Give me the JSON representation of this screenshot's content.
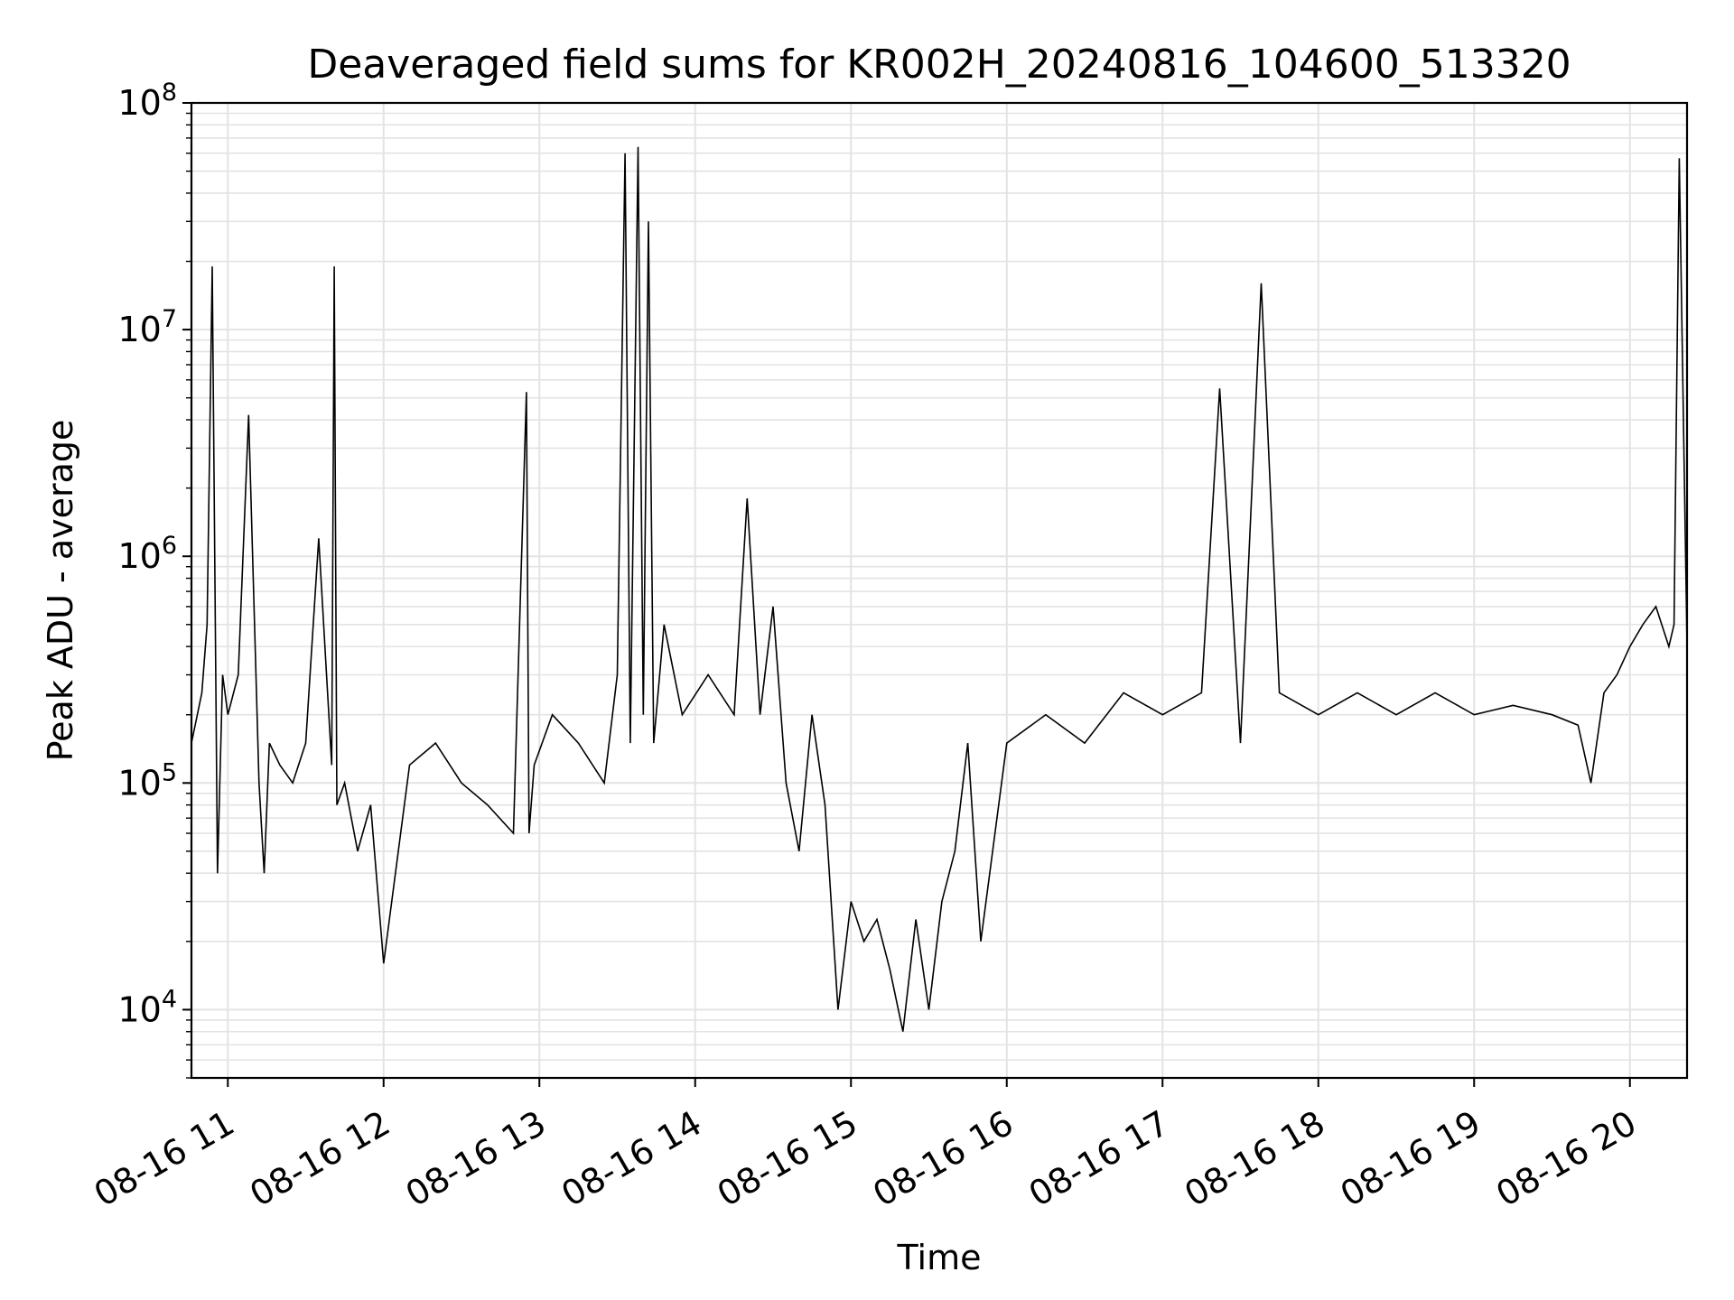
{
  "chart_data": {
    "type": "line",
    "title": "Deaveraged field sums for KR002H_20240816_104600_513320",
    "xlabel": "Time",
    "ylabel": "Peak ADU - average",
    "yscale": "log",
    "ylim": [
      5000,
      100000000
    ],
    "xlim": [
      "2024-08-16 10:46",
      "2024-08-16 20:22"
    ],
    "grid": true,
    "line_color": "#000000",
    "x_ticks": [
      {
        "value": "2024-08-16 11:00",
        "label": "08-16 11"
      },
      {
        "value": "2024-08-16 12:00",
        "label": "08-16 12"
      },
      {
        "value": "2024-08-16 13:00",
        "label": "08-16 13"
      },
      {
        "value": "2024-08-16 14:00",
        "label": "08-16 14"
      },
      {
        "value": "2024-08-16 15:00",
        "label": "08-16 15"
      },
      {
        "value": "2024-08-16 16:00",
        "label": "08-16 16"
      },
      {
        "value": "2024-08-16 17:00",
        "label": "08-16 17"
      },
      {
        "value": "2024-08-16 18:00",
        "label": "08-16 18"
      },
      {
        "value": "2024-08-16 19:00",
        "label": "08-16 19"
      },
      {
        "value": "2024-08-16 20:00",
        "label": "08-16 20"
      }
    ],
    "y_ticks": [
      {
        "value": 10000,
        "base": "10",
        "exp": "4"
      },
      {
        "value": 100000,
        "base": "10",
        "exp": "5"
      },
      {
        "value": 1000000,
        "base": "10",
        "exp": "6"
      },
      {
        "value": 10000000,
        "base": "10",
        "exp": "7"
      },
      {
        "value": 100000000,
        "base": "10",
        "exp": "8"
      }
    ],
    "series": [
      {
        "x": [
          "2024-08-16 10:46",
          "2024-08-16 10:50",
          "2024-08-16 10:52",
          "2024-08-16 10:54",
          "2024-08-16 10:56",
          "2024-08-16 10:58",
          "2024-08-16 11:00",
          "2024-08-16 11:04",
          "2024-08-16 11:08",
          "2024-08-16 11:12",
          "2024-08-16 11:14",
          "2024-08-16 11:16",
          "2024-08-16 11:20",
          "2024-08-16 11:25",
          "2024-08-16 11:30",
          "2024-08-16 11:35",
          "2024-08-16 11:40",
          "2024-08-16 11:41",
          "2024-08-16 11:42",
          "2024-08-16 11:45",
          "2024-08-16 11:50",
          "2024-08-16 11:55",
          "2024-08-16 12:00",
          "2024-08-16 12:10",
          "2024-08-16 12:20",
          "2024-08-16 12:30",
          "2024-08-16 12:40",
          "2024-08-16 12:50",
          "2024-08-16 12:55",
          "2024-08-16 12:56",
          "2024-08-16 12:58",
          "2024-08-16 13:05",
          "2024-08-16 13:15",
          "2024-08-16 13:25",
          "2024-08-16 13:30",
          "2024-08-16 13:33",
          "2024-08-16 13:35",
          "2024-08-16 13:38",
          "2024-08-16 13:40",
          "2024-08-16 13:42",
          "2024-08-16 13:44",
          "2024-08-16 13:48",
          "2024-08-16 13:55",
          "2024-08-16 14:05",
          "2024-08-16 14:15",
          "2024-08-16 14:20",
          "2024-08-16 14:25",
          "2024-08-16 14:30",
          "2024-08-16 14:35",
          "2024-08-16 14:40",
          "2024-08-16 14:45",
          "2024-08-16 14:50",
          "2024-08-16 14:55",
          "2024-08-16 15:00",
          "2024-08-16 15:05",
          "2024-08-16 15:10",
          "2024-08-16 15:15",
          "2024-08-16 15:20",
          "2024-08-16 15:25",
          "2024-08-16 15:30",
          "2024-08-16 15:35",
          "2024-08-16 15:40",
          "2024-08-16 15:45",
          "2024-08-16 15:50",
          "2024-08-16 16:00",
          "2024-08-16 16:15",
          "2024-08-16 16:30",
          "2024-08-16 16:45",
          "2024-08-16 17:00",
          "2024-08-16 17:15",
          "2024-08-16 17:22",
          "2024-08-16 17:30",
          "2024-08-16 17:38",
          "2024-08-16 17:45",
          "2024-08-16 18:00",
          "2024-08-16 18:15",
          "2024-08-16 18:30",
          "2024-08-16 18:45",
          "2024-08-16 19:00",
          "2024-08-16 19:15",
          "2024-08-16 19:30",
          "2024-08-16 19:40",
          "2024-08-16 19:45",
          "2024-08-16 19:50",
          "2024-08-16 19:55",
          "2024-08-16 20:00",
          "2024-08-16 20:05",
          "2024-08-16 20:10",
          "2024-08-16 20:15",
          "2024-08-16 20:17",
          "2024-08-16 20:19",
          "2024-08-16 20:22"
        ],
        "values": [
          150000,
          250000,
          500000,
          19000000,
          40000,
          300000,
          200000,
          300000,
          4200000,
          100000,
          40000,
          150000,
          120000,
          100000,
          150000,
          1200000,
          120000,
          19000000,
          80000,
          100000,
          50000,
          80000,
          16000,
          120000,
          150000,
          100000,
          80000,
          60000,
          5300000,
          60000,
          120000,
          200000,
          150000,
          100000,
          300000,
          60000000,
          150000,
          64000000,
          200000,
          30000000,
          150000,
          500000,
          200000,
          300000,
          200000,
          1800000,
          200000,
          600000,
          100000,
          50000,
          200000,
          80000,
          10000,
          30000,
          20000,
          25000,
          15000,
          8000,
          25000,
          10000,
          30000,
          50000,
          150000,
          20000,
          150000,
          200000,
          150000,
          250000,
          200000,
          250000,
          5500000,
          150000,
          16000000,
          250000,
          200000,
          250000,
          200000,
          250000,
          200000,
          220000,
          200000,
          180000,
          100000,
          250000,
          300000,
          400000,
          500000,
          600000,
          400000,
          500000,
          57000000,
          400000
        ]
      }
    ]
  }
}
